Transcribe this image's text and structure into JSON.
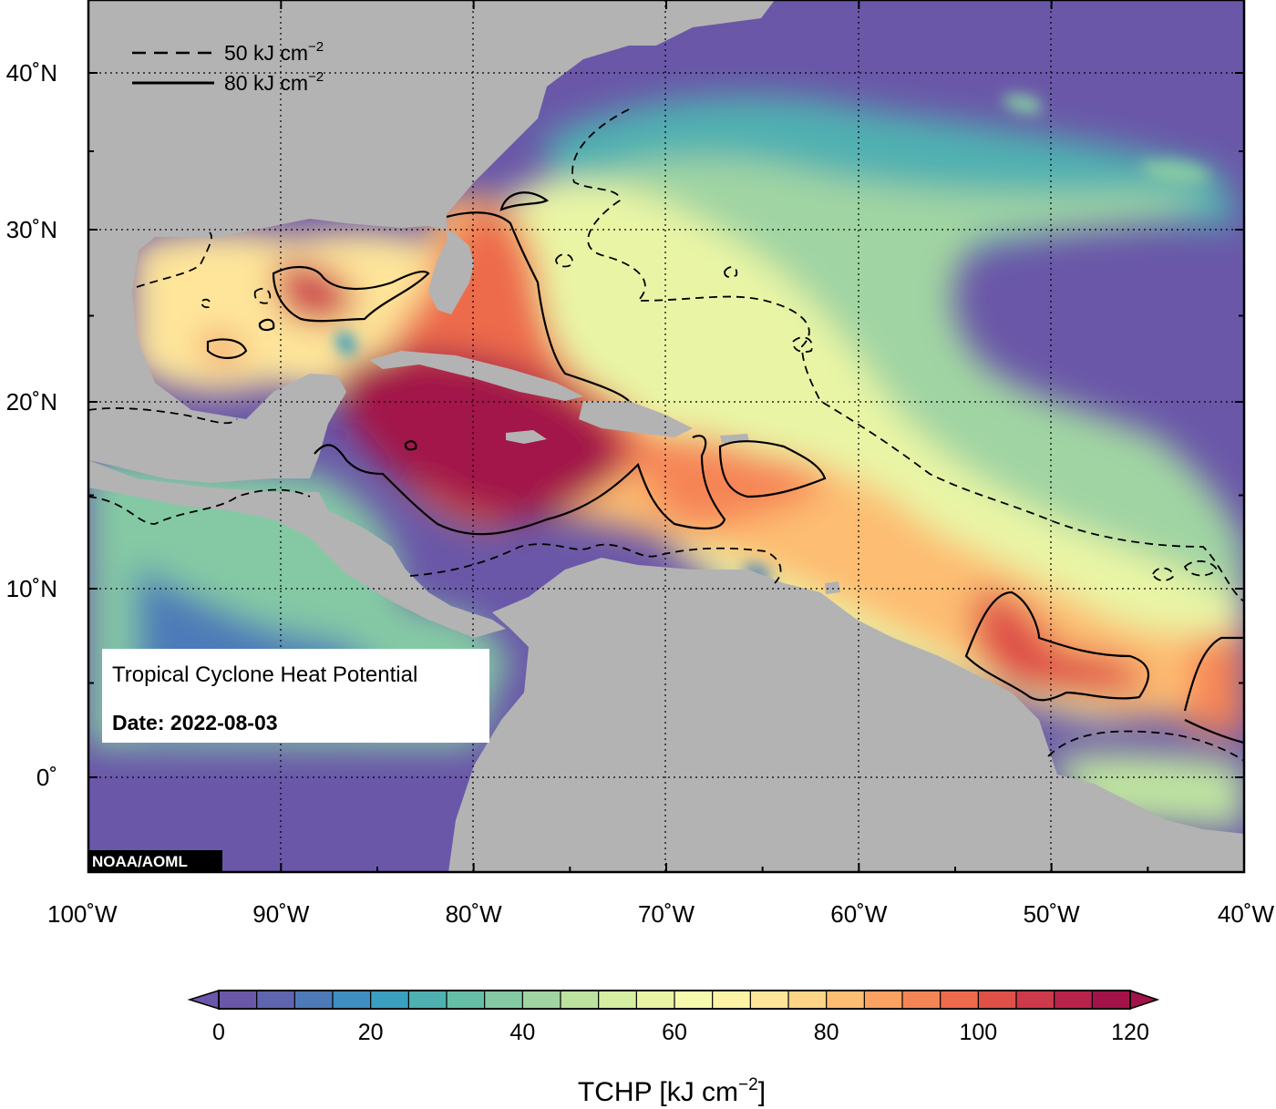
{
  "map": {
    "legend": [
      {
        "style": "dashed",
        "label": "50 kJ cm",
        "sup": "−2"
      },
      {
        "style": "solid",
        "label": "80 kJ cm",
        "sup": "−2"
      }
    ],
    "info_box": {
      "title": "Tropical Cyclone Heat Potential",
      "date": "Date: 2022-08-03"
    },
    "credit": "NOAA/AOML",
    "lat_ticks": [
      {
        "lat": 40,
        "label": "40˚N"
      },
      {
        "lat": 30,
        "label": "30˚N"
      },
      {
        "lat": 20,
        "label": "20˚N"
      },
      {
        "lat": 10,
        "label": "10˚N"
      },
      {
        "lat": 0,
        "label": "0˚"
      }
    ],
    "lon_ticks": [
      {
        "lon": -100,
        "label": "100˚W"
      },
      {
        "lon": -90,
        "label": "90˚W"
      },
      {
        "lon": -80,
        "label": "80˚W"
      },
      {
        "lon": -70,
        "label": "70˚W"
      },
      {
        "lon": -60,
        "label": "60˚W"
      },
      {
        "lon": -50,
        "label": "50˚W"
      },
      {
        "lon": -40,
        "label": "40˚W"
      }
    ],
    "colors": {
      "ocean_low": "#6a57a8",
      "land": "#b3b3b3",
      "warm_core": "#a3134a"
    }
  },
  "colorbar": {
    "ticks": [
      "0",
      "20",
      "40",
      "60",
      "80",
      "100",
      "120"
    ],
    "min": 0,
    "max": 120,
    "step": 5,
    "title": "TCHP [kJ cm",
    "title_sup": "−2",
    "title_end": "]",
    "colors": [
      "#6a57a8",
      "#5f65ae",
      "#4e7ab8",
      "#3f8ec0",
      "#3b9fc0",
      "#4fb0b1",
      "#66bea6",
      "#84c9a4",
      "#a0d4a3",
      "#bde2a0",
      "#d5eea1",
      "#e9f5a5",
      "#f6faaf",
      "#fdf3a7",
      "#fee59a",
      "#fed487",
      "#fdbd72",
      "#fba262",
      "#f68556",
      "#ed6a4c",
      "#df5148",
      "#cd3a4b",
      "#b8234c",
      "#a3134a"
    ]
  }
}
